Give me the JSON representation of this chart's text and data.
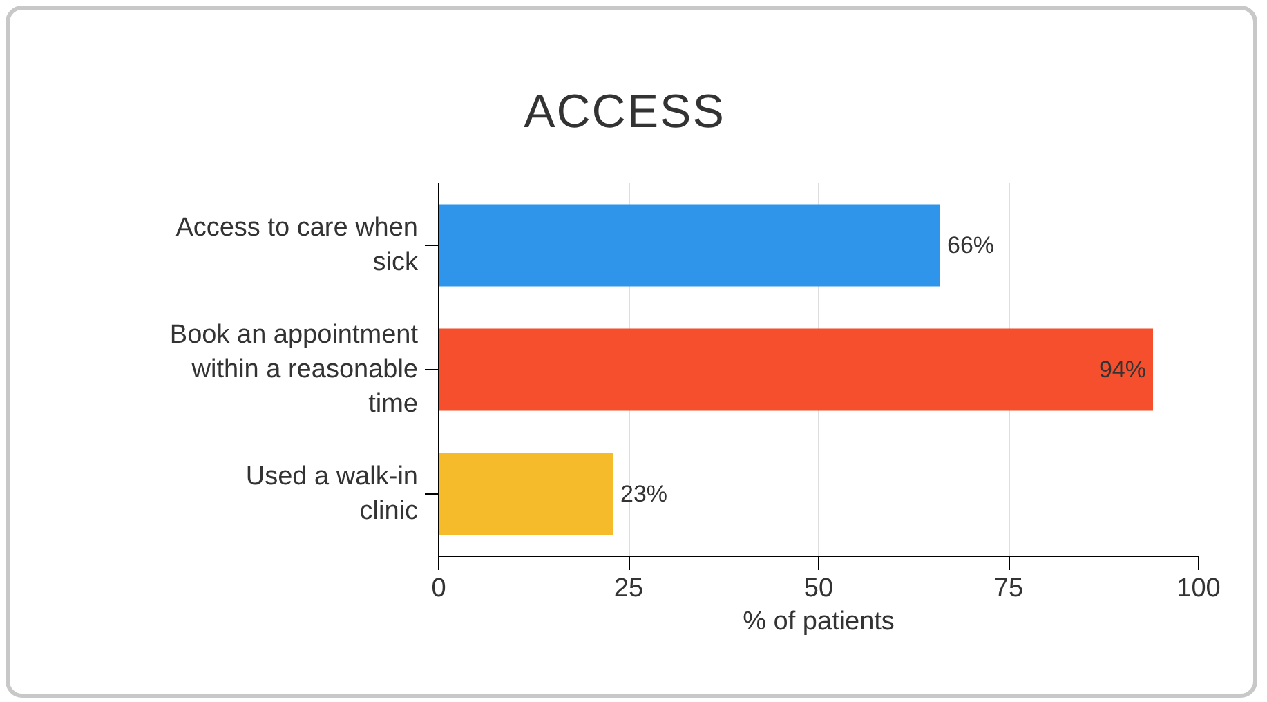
{
  "chart_data": {
    "type": "bar",
    "orientation": "horizontal",
    "title": "ACCESS",
    "xlabel": "% of patients",
    "categories": [
      "Access to care when sick",
      "Book an appointment within a reasonable time",
      "Used a walk-in clinic"
    ],
    "values": [
      66,
      94,
      23
    ],
    "colors": [
      "#2f95ea",
      "#f54f2d",
      "#f6bb2b"
    ],
    "value_labels": [
      "66%",
      "94%",
      "23%"
    ],
    "xlim": [
      0,
      100
    ],
    "xticks": [
      0,
      25,
      50,
      75,
      100
    ],
    "grid": "x"
  }
}
